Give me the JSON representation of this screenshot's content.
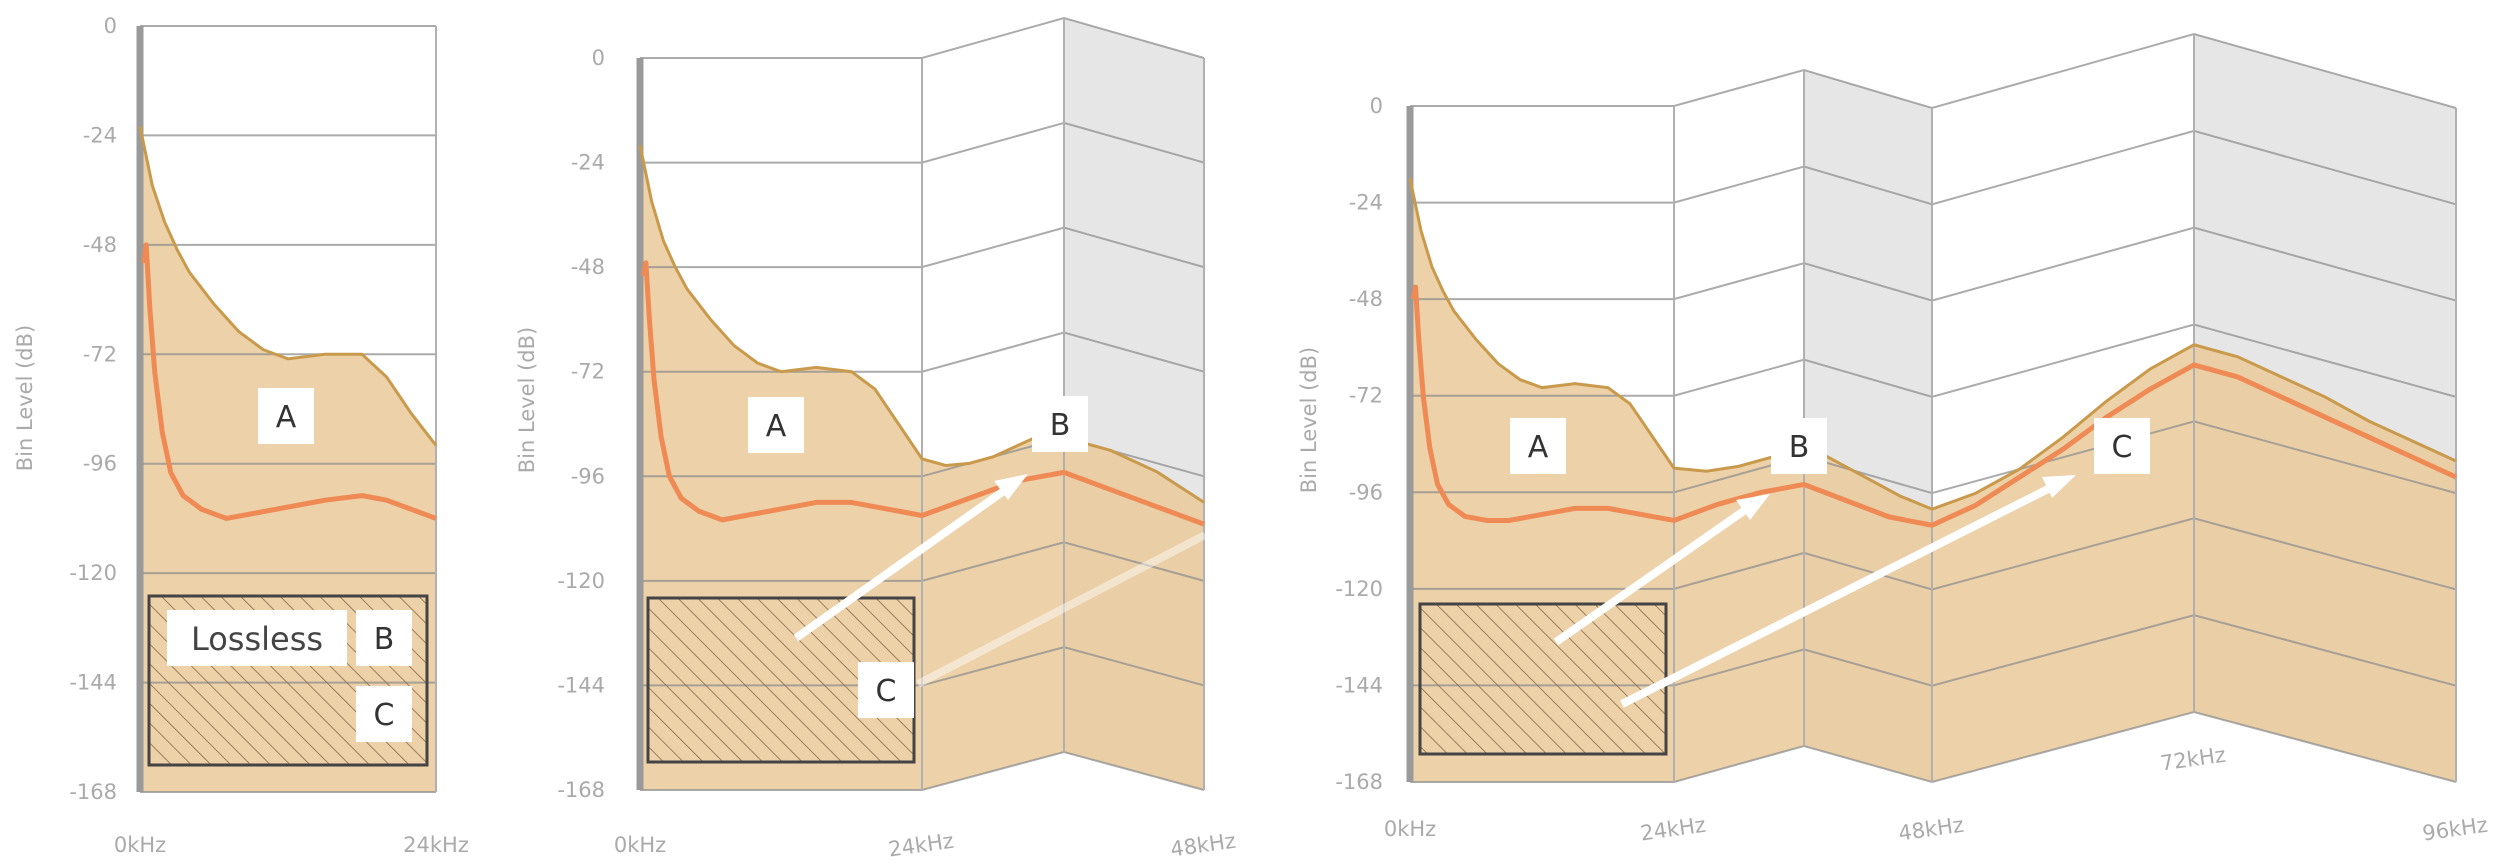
{
  "chart_data": [
    {
      "type": "area",
      "title": "",
      "ylabel": "Bin Level (dB)",
      "ylim": [
        -168,
        0
      ],
      "yticks": [
        "0",
        "-24",
        "-48",
        "-72",
        "-96",
        "-120",
        "-144",
        "-168"
      ],
      "xticks": [
        "0kHz",
        "24kHz"
      ],
      "series": [
        {
          "name": "upper",
          "x": [
            0,
            1,
            2,
            3,
            4,
            6,
            8,
            10,
            12,
            15,
            18,
            20,
            22,
            24
          ],
          "y": [
            -22,
            -35,
            -43,
            -49,
            -54,
            -61,
            -67,
            -71,
            -73,
            -72,
            -72,
            -77,
            -85,
            -92
          ]
        },
        {
          "name": "lower",
          "x": [
            0.3,
            0.5,
            0.8,
            1.2,
            1.8,
            2.5,
            3.5,
            5,
            7,
            9,
            11,
            13,
            15,
            18,
            20,
            22,
            24
          ],
          "y": [
            -52,
            -48,
            -62,
            -76,
            -89,
            -98,
            -103,
            -106,
            -108,
            -107,
            -106,
            -105,
            -104,
            -103,
            -104,
            -106,
            -108
          ]
        }
      ],
      "regions": [
        {
          "label": "A"
        },
        {
          "label": "B"
        },
        {
          "label": "C"
        },
        {
          "label": "Lossless"
        }
      ]
    },
    {
      "type": "area",
      "title": "",
      "ylabel": "Bin Level (dB)",
      "ylim": [
        -168,
        0
      ],
      "yticks": [
        "0",
        "-24",
        "-48",
        "-72",
        "-96",
        "-120",
        "-144",
        "-168"
      ],
      "xticks": [
        "0kHz",
        "24kHz",
        "48kHz"
      ],
      "series": [
        {
          "name": "upper",
          "x": [
            0,
            1,
            2,
            3,
            4,
            6,
            8,
            10,
            12,
            15,
            18,
            20,
            22,
            24,
            26,
            28,
            30,
            32,
            34,
            36,
            38,
            40,
            42,
            44,
            46,
            48
          ],
          "y": [
            -20,
            -33,
            -42,
            -48,
            -53,
            -60,
            -66,
            -70,
            -72,
            -71,
            -72,
            -76,
            -84,
            -92,
            -95,
            -96,
            -96,
            -95,
            -94,
            -95,
            -96,
            -96,
            -97,
            -98,
            -100,
            -102
          ]
        },
        {
          "name": "lower",
          "x": [
            0.3,
            0.5,
            0.8,
            1.2,
            1.8,
            2.5,
            3.5,
            5,
            7,
            9,
            11,
            13,
            15,
            18,
            20,
            22,
            24,
            28,
            32,
            36,
            40,
            44,
            48
          ],
          "y": [
            -50,
            -47,
            -60,
            -74,
            -87,
            -96,
            -101,
            -104,
            -106,
            -105,
            -104,
            -103,
            -102,
            -102,
            -103,
            -104,
            -105,
            -104,
            -103,
            -104,
            -105,
            -106,
            -107
          ]
        }
      ],
      "regions": [
        {
          "label": "A"
        },
        {
          "label": "B"
        },
        {
          "label": "C"
        }
      ]
    },
    {
      "type": "area",
      "title": "",
      "ylabel": "Bin Level (dB)",
      "ylim": [
        -168,
        0
      ],
      "yticks": [
        "0",
        "-24",
        "-48",
        "-72",
        "-96",
        "-120",
        "-144",
        "-168"
      ],
      "xticks": [
        "0kHz",
        "24kHz",
        "48kHz",
        "72kHz",
        "96kHz"
      ],
      "series": [
        {
          "name": "upper",
          "x": [
            0,
            1,
            2,
            3,
            4,
            6,
            8,
            10,
            12,
            15,
            18,
            20,
            22,
            24,
            27,
            30,
            33,
            36,
            39,
            42,
            45,
            48,
            52,
            56,
            60,
            64,
            68,
            72,
            76,
            80,
            84,
            88,
            92,
            96
          ],
          "y": [
            -18,
            -31,
            -40,
            -46,
            -51,
            -58,
            -64,
            -68,
            -70,
            -69,
            -70,
            -74,
            -82,
            -90,
            -93,
            -94,
            -94,
            -93,
            -95,
            -97,
            -99,
            -100,
            -99,
            -96,
            -91,
            -85,
            -80,
            -77,
            -77,
            -79,
            -81,
            -84,
            -86,
            -88
          ]
        },
        {
          "name": "lower",
          "x": [
            0.3,
            0.5,
            0.8,
            1.2,
            1.8,
            2.5,
            3.5,
            5,
            7,
            9,
            11,
            13,
            15,
            18,
            20,
            22,
            24,
            28,
            32,
            36,
            40,
            44,
            48,
            52,
            56,
            60,
            64,
            68,
            72,
            76,
            80,
            84,
            88,
            92,
            96
          ],
          "y": [
            -48,
            -45,
            -58,
            -72,
            -85,
            -94,
            -99,
            -102,
            -103,
            -103,
            -102,
            -101,
            -100,
            -100,
            -101,
            -102,
            -103,
            -102,
            -102,
            -103,
            -104,
            -105,
            -104,
            -102,
            -98,
            -94,
            -89,
            -85,
            -82,
            -82,
            -84,
            -86,
            -88,
            -90,
            -92
          ]
        }
      ],
      "regions": [
        {
          "label": "A"
        },
        {
          "label": "B"
        },
        {
          "label": "C"
        }
      ]
    }
  ],
  "colors": {
    "fill_upper": "#e9c99a",
    "fill_lower": "#dcb88a",
    "line_upper": "#c99a4c",
    "line_lower": "#ef8a55",
    "grid": "#8f8f8f",
    "axis": "#9a9a9a",
    "shade": "#e6e6e6",
    "arrow": "#ffffff",
    "hatch_box": "#444444"
  }
}
